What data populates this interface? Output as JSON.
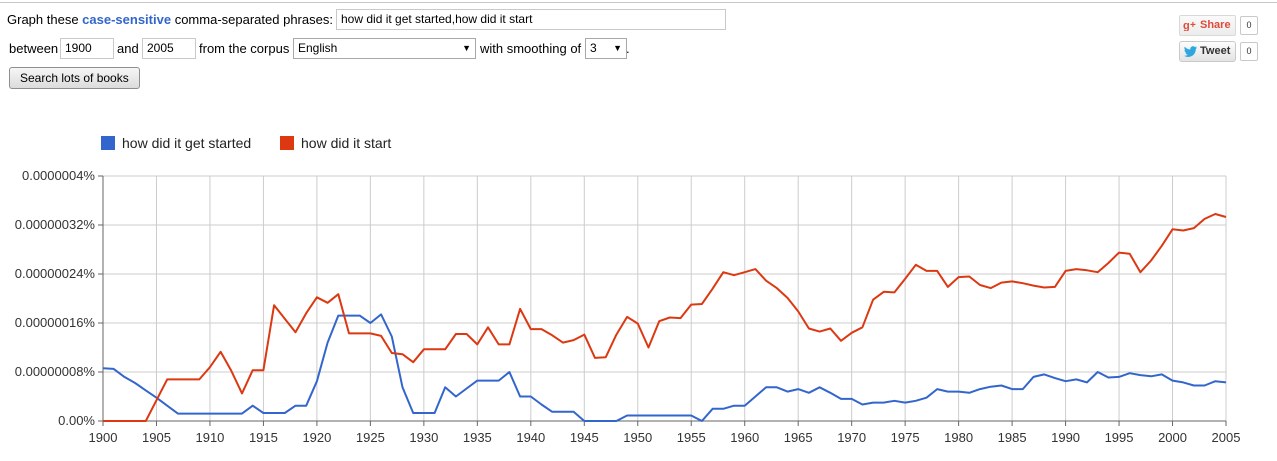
{
  "query_bar": {
    "prefix": "Graph these",
    "keyword": "case-sensitive",
    "suffix": "comma-separated phrases:",
    "phrases_value": "how did it get started,how did it start",
    "between_label": "between",
    "year_start": "1900",
    "and_label": "and",
    "year_end": "2005",
    "corpus_label": "from the corpus",
    "corpus_value": "English",
    "smoothing_label": "with smoothing of",
    "smoothing_value": "3",
    "period": ".",
    "search_button": "Search lots of books"
  },
  "social": {
    "share_label": "Share",
    "share_count": "0",
    "tweet_label": "Tweet",
    "tweet_count": "0",
    "gplus_icon": "g-plus-icon",
    "twitter_icon": "twitter-bird-icon"
  },
  "chart_data": {
    "type": "line",
    "xlim": [
      1900,
      2005
    ],
    "ylim": [
      0,
      4e-07
    ],
    "x_ticks": [
      "1900",
      "1905",
      "1910",
      "1915",
      "1920",
      "1925",
      "1930",
      "1935",
      "1940",
      "1945",
      "1950",
      "1955",
      "1960",
      "1965",
      "1970",
      "1975",
      "1980",
      "1985",
      "1990",
      "1995",
      "2000",
      "2005"
    ],
    "y_ticks": [
      "0.00%",
      "0.00000008%",
      "0.00000016%",
      "0.00000024%",
      "0.00000032%",
      "0.0000004%"
    ],
    "y_tick_values": [
      0,
      8e-08,
      1.6e-07,
      2.4e-07,
      3.2e-07,
      4e-07
    ],
    "grid": true,
    "legend_position": "top-left",
    "x": [
      1900,
      1901,
      1902,
      1903,
      1904,
      1905,
      1906,
      1907,
      1908,
      1909,
      1910,
      1911,
      1912,
      1913,
      1914,
      1915,
      1916,
      1917,
      1918,
      1919,
      1920,
      1921,
      1922,
      1923,
      1924,
      1925,
      1926,
      1927,
      1928,
      1929,
      1930,
      1931,
      1932,
      1933,
      1934,
      1935,
      1936,
      1937,
      1938,
      1939,
      1940,
      1941,
      1942,
      1943,
      1944,
      1945,
      1946,
      1947,
      1948,
      1949,
      1950,
      1951,
      1952,
      1953,
      1954,
      1955,
      1956,
      1957,
      1958,
      1959,
      1960,
      1961,
      1962,
      1963,
      1964,
      1965,
      1966,
      1967,
      1968,
      1969,
      1970,
      1971,
      1972,
      1973,
      1974,
      1975,
      1976,
      1977,
      1978,
      1979,
      1980,
      1981,
      1982,
      1983,
      1984,
      1985,
      1986,
      1987,
      1988,
      1989,
      1990,
      1991,
      1992,
      1993,
      1994,
      1995,
      1996,
      1997,
      1998,
      1999,
      2000,
      2001,
      2002,
      2003,
      2004,
      2005
    ],
    "series": [
      {
        "name": "how did it get started",
        "color": "#3366cc",
        "values": [
          8.6e-08,
          8.5e-08,
          7.2e-08,
          6.2e-08,
          5e-08,
          3.8e-08,
          2.5e-08,
          1.2e-08,
          1.2e-08,
          1.2e-08,
          1.2e-08,
          1.2e-08,
          1.2e-08,
          1.2e-08,
          2.5e-08,
          1.3e-08,
          1.3e-08,
          1.3e-08,
          2.5e-08,
          2.5e-08,
          6.5e-08,
          1.28e-07,
          1.72e-07,
          1.72e-07,
          1.72e-07,
          1.6e-07,
          1.74e-07,
          1.38e-07,
          5.5e-08,
          1.3e-08,
          1.3e-08,
          1.3e-08,
          5.5e-08,
          4e-08,
          5.3e-08,
          6.6e-08,
          6.6e-08,
          6.6e-08,
          8e-08,
          4e-08,
          4e-08,
          2.7e-08,
          1.5e-08,
          1.5e-08,
          1.5e-08,
          0,
          0,
          0,
          0,
          9e-09,
          9e-09,
          9e-09,
          9e-09,
          9e-09,
          9e-09,
          9e-09,
          0,
          2e-08,
          2e-08,
          2.5e-08,
          2.5e-08,
          4e-08,
          5.5e-08,
          5.5e-08,
          4.8e-08,
          5.2e-08,
          4.6e-08,
          5.5e-08,
          4.6e-08,
          3.6e-08,
          3.6e-08,
          2.7e-08,
          3e-08,
          3e-08,
          3.3e-08,
          3e-08,
          3.3e-08,
          3.8e-08,
          5.2e-08,
          4.8e-08,
          4.8e-08,
          4.6e-08,
          5.2e-08,
          5.6e-08,
          5.8e-08,
          5.2e-08,
          5.2e-08,
          7.2e-08,
          7.6e-08,
          7e-08,
          6.5e-08,
          6.8e-08,
          6.3e-08,
          8e-08,
          7.1e-08,
          7.2e-08,
          7.8e-08,
          7.5e-08,
          7.3e-08,
          7.6e-08,
          6.6e-08,
          6.3e-08,
          5.8e-08,
          5.8e-08,
          6.5e-08,
          6.3e-08
        ]
      },
      {
        "name": "how did it start",
        "color": "#dc3912",
        "values": [
          0,
          0,
          0,
          0,
          0,
          3.4e-08,
          6.8e-08,
          6.8e-08,
          6.8e-08,
          6.8e-08,
          8.8e-08,
          1.13e-07,
          8.2e-08,
          4.5e-08,
          8.3e-08,
          8.3e-08,
          1.89e-07,
          1.67e-07,
          1.45e-07,
          1.76e-07,
          2.02e-07,
          1.93e-07,
          2.07e-07,
          1.43e-07,
          1.43e-07,
          1.43e-07,
          1.39e-07,
          1.11e-07,
          1.09e-07,
          9.6e-08,
          1.17e-07,
          1.17e-07,
          1.17e-07,
          1.42e-07,
          1.42e-07,
          1.25e-07,
          1.53e-07,
          1.25e-07,
          1.25e-07,
          1.83e-07,
          1.5e-07,
          1.5e-07,
          1.4e-07,
          1.28e-07,
          1.32e-07,
          1.41e-07,
          1.03e-07,
          1.04e-07,
          1.41e-07,
          1.7e-07,
          1.59e-07,
          1.2e-07,
          1.63e-07,
          1.69e-07,
          1.68e-07,
          1.9e-07,
          1.91e-07,
          2.16e-07,
          2.43e-07,
          2.38e-07,
          2.43e-07,
          2.48e-07,
          2.29e-07,
          2.17e-07,
          2.01e-07,
          1.79e-07,
          1.51e-07,
          1.46e-07,
          1.51e-07,
          1.31e-07,
          1.44e-07,
          1.53e-07,
          1.98e-07,
          2.11e-07,
          2.1e-07,
          2.32e-07,
          2.55e-07,
          2.45e-07,
          2.45e-07,
          2.19e-07,
          2.35e-07,
          2.36e-07,
          2.22e-07,
          2.17e-07,
          2.26e-07,
          2.28e-07,
          2.25e-07,
          2.21e-07,
          2.18e-07,
          2.19e-07,
          2.45e-07,
          2.48e-07,
          2.46e-07,
          2.43e-07,
          2.58e-07,
          2.75e-07,
          2.73e-07,
          2.43e-07,
          2.62e-07,
          2.86e-07,
          3.13e-07,
          3.11e-07,
          3.15e-07,
          3.3e-07,
          3.38e-07,
          3.33e-07
        ]
      }
    ]
  }
}
